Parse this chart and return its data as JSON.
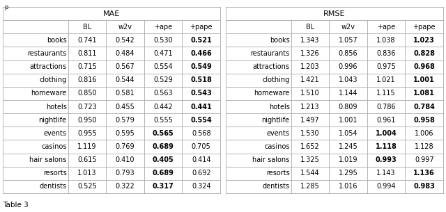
{
  "categories": [
    "books",
    "restaurants",
    "attractions",
    "clothing",
    "homeware",
    "hotels",
    "nightlife",
    "events",
    "casinos",
    "hair salons",
    "resorts",
    "dentists"
  ],
  "col_headers": [
    "BL",
    "w2v",
    "+ape",
    "+pape"
  ],
  "mae_data": [
    [
      0.741,
      0.542,
      0.53,
      0.521
    ],
    [
      0.811,
      0.484,
      0.471,
      0.466
    ],
    [
      0.715,
      0.567,
      0.554,
      0.549
    ],
    [
      0.816,
      0.544,
      0.529,
      0.518
    ],
    [
      0.85,
      0.581,
      0.563,
      0.543
    ],
    [
      0.723,
      0.455,
      0.442,
      0.441
    ],
    [
      0.95,
      0.579,
      0.555,
      0.554
    ],
    [
      0.955,
      0.595,
      0.565,
      0.568
    ],
    [
      1.119,
      0.769,
      0.689,
      0.705
    ],
    [
      0.615,
      0.41,
      0.405,
      0.414
    ],
    [
      1.013,
      0.793,
      0.689,
      0.692
    ],
    [
      0.525,
      0.322,
      0.317,
      0.324
    ]
  ],
  "mae_bold": [
    [
      false,
      false,
      false,
      true
    ],
    [
      false,
      false,
      false,
      true
    ],
    [
      false,
      false,
      false,
      true
    ],
    [
      false,
      false,
      false,
      true
    ],
    [
      false,
      false,
      false,
      true
    ],
    [
      false,
      false,
      false,
      true
    ],
    [
      false,
      false,
      false,
      true
    ],
    [
      false,
      false,
      true,
      false
    ],
    [
      false,
      false,
      true,
      false
    ],
    [
      false,
      false,
      true,
      false
    ],
    [
      false,
      false,
      true,
      false
    ],
    [
      false,
      false,
      true,
      false
    ]
  ],
  "rmse_data": [
    [
      1.343,
      1.057,
      1.038,
      1.023
    ],
    [
      1.326,
      0.856,
      0.836,
      0.828
    ],
    [
      1.203,
      0.996,
      0.975,
      0.968
    ],
    [
      1.421,
      1.043,
      1.021,
      1.001
    ],
    [
      1.51,
      1.144,
      1.115,
      1.081
    ],
    [
      1.213,
      0.809,
      0.786,
      0.784
    ],
    [
      1.497,
      1.001,
      0.961,
      0.958
    ],
    [
      1.53,
      1.054,
      1.004,
      1.006
    ],
    [
      1.652,
      1.245,
      1.118,
      1.128
    ],
    [
      1.325,
      1.019,
      0.993,
      0.997
    ],
    [
      1.544,
      1.295,
      1.143,
      1.136
    ],
    [
      1.285,
      1.016,
      0.994,
      0.983
    ]
  ],
  "rmse_bold": [
    [
      false,
      false,
      false,
      true
    ],
    [
      false,
      false,
      false,
      true
    ],
    [
      false,
      false,
      false,
      true
    ],
    [
      false,
      false,
      false,
      true
    ],
    [
      false,
      false,
      false,
      true
    ],
    [
      false,
      false,
      false,
      true
    ],
    [
      false,
      false,
      false,
      true
    ],
    [
      false,
      false,
      true,
      false
    ],
    [
      false,
      false,
      true,
      false
    ],
    [
      false,
      false,
      true,
      false
    ],
    [
      false,
      false,
      false,
      true
    ],
    [
      false,
      false,
      false,
      true
    ]
  ],
  "caption": "Table 3",
  "top_label": "p",
  "bg_color": "#ffffff",
  "line_color": "#aaaaaa",
  "font_size": 7.0,
  "header_font_size": 8.0,
  "fig_width": 6.4,
  "fig_height": 3.05
}
